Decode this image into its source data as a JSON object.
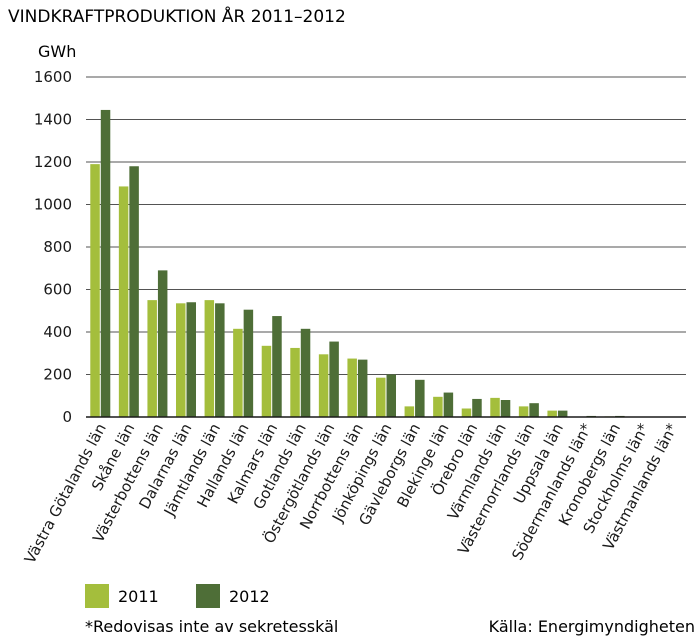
{
  "colors": {
    "series_2011": "#a4be3c",
    "series_2012": "#4e6e37",
    "axis": "#1a1a1a",
    "grid": "#1a1a1a"
  },
  "footnote": "*Redovisas inte av sekretesskäl",
  "source": "Källa: Energimyndigheten",
  "chart_data": {
    "type": "bar",
    "title": "VINDKRAFTPRODUKTION ÅR 2011–2012",
    "ylabel": "GWh",
    "xlabel": "",
    "ylim": [
      0,
      1600
    ],
    "yticks": [
      "0",
      "200",
      "400",
      "600",
      "800",
      "1000",
      "1200",
      "1400",
      "1600"
    ],
    "grid": true,
    "legend_position": "bottom-left",
    "categories": [
      "Västra Götalands län",
      "Skåne län",
      "Västerbottens län",
      "Dalarnas län",
      "Jämtlands län",
      "Hallands län",
      "Kalmars län",
      "Gotlands län",
      "Östergötlands län",
      "Norrbottens län",
      "Jönköpings län",
      "Gävleborgs län",
      "Blekinge län",
      "Örebro län",
      "Värmlands län",
      "Västernorrlands län",
      "Uppsala län",
      "Södermanlands län*",
      "Kronobergs län",
      "Stockholms län*",
      "Västmanlands län*"
    ],
    "series": [
      {
        "name": "2011",
        "values": [
          1190,
          1085,
          550,
          535,
          550,
          415,
          335,
          325,
          295,
          275,
          185,
          50,
          95,
          40,
          90,
          50,
          30,
          0,
          3,
          0,
          0
        ]
      },
      {
        "name": "2012",
        "values": [
          1445,
          1180,
          690,
          540,
          535,
          505,
          475,
          415,
          355,
          270,
          200,
          175,
          115,
          85,
          80,
          65,
          30,
          5,
          5,
          0,
          0
        ]
      }
    ]
  }
}
